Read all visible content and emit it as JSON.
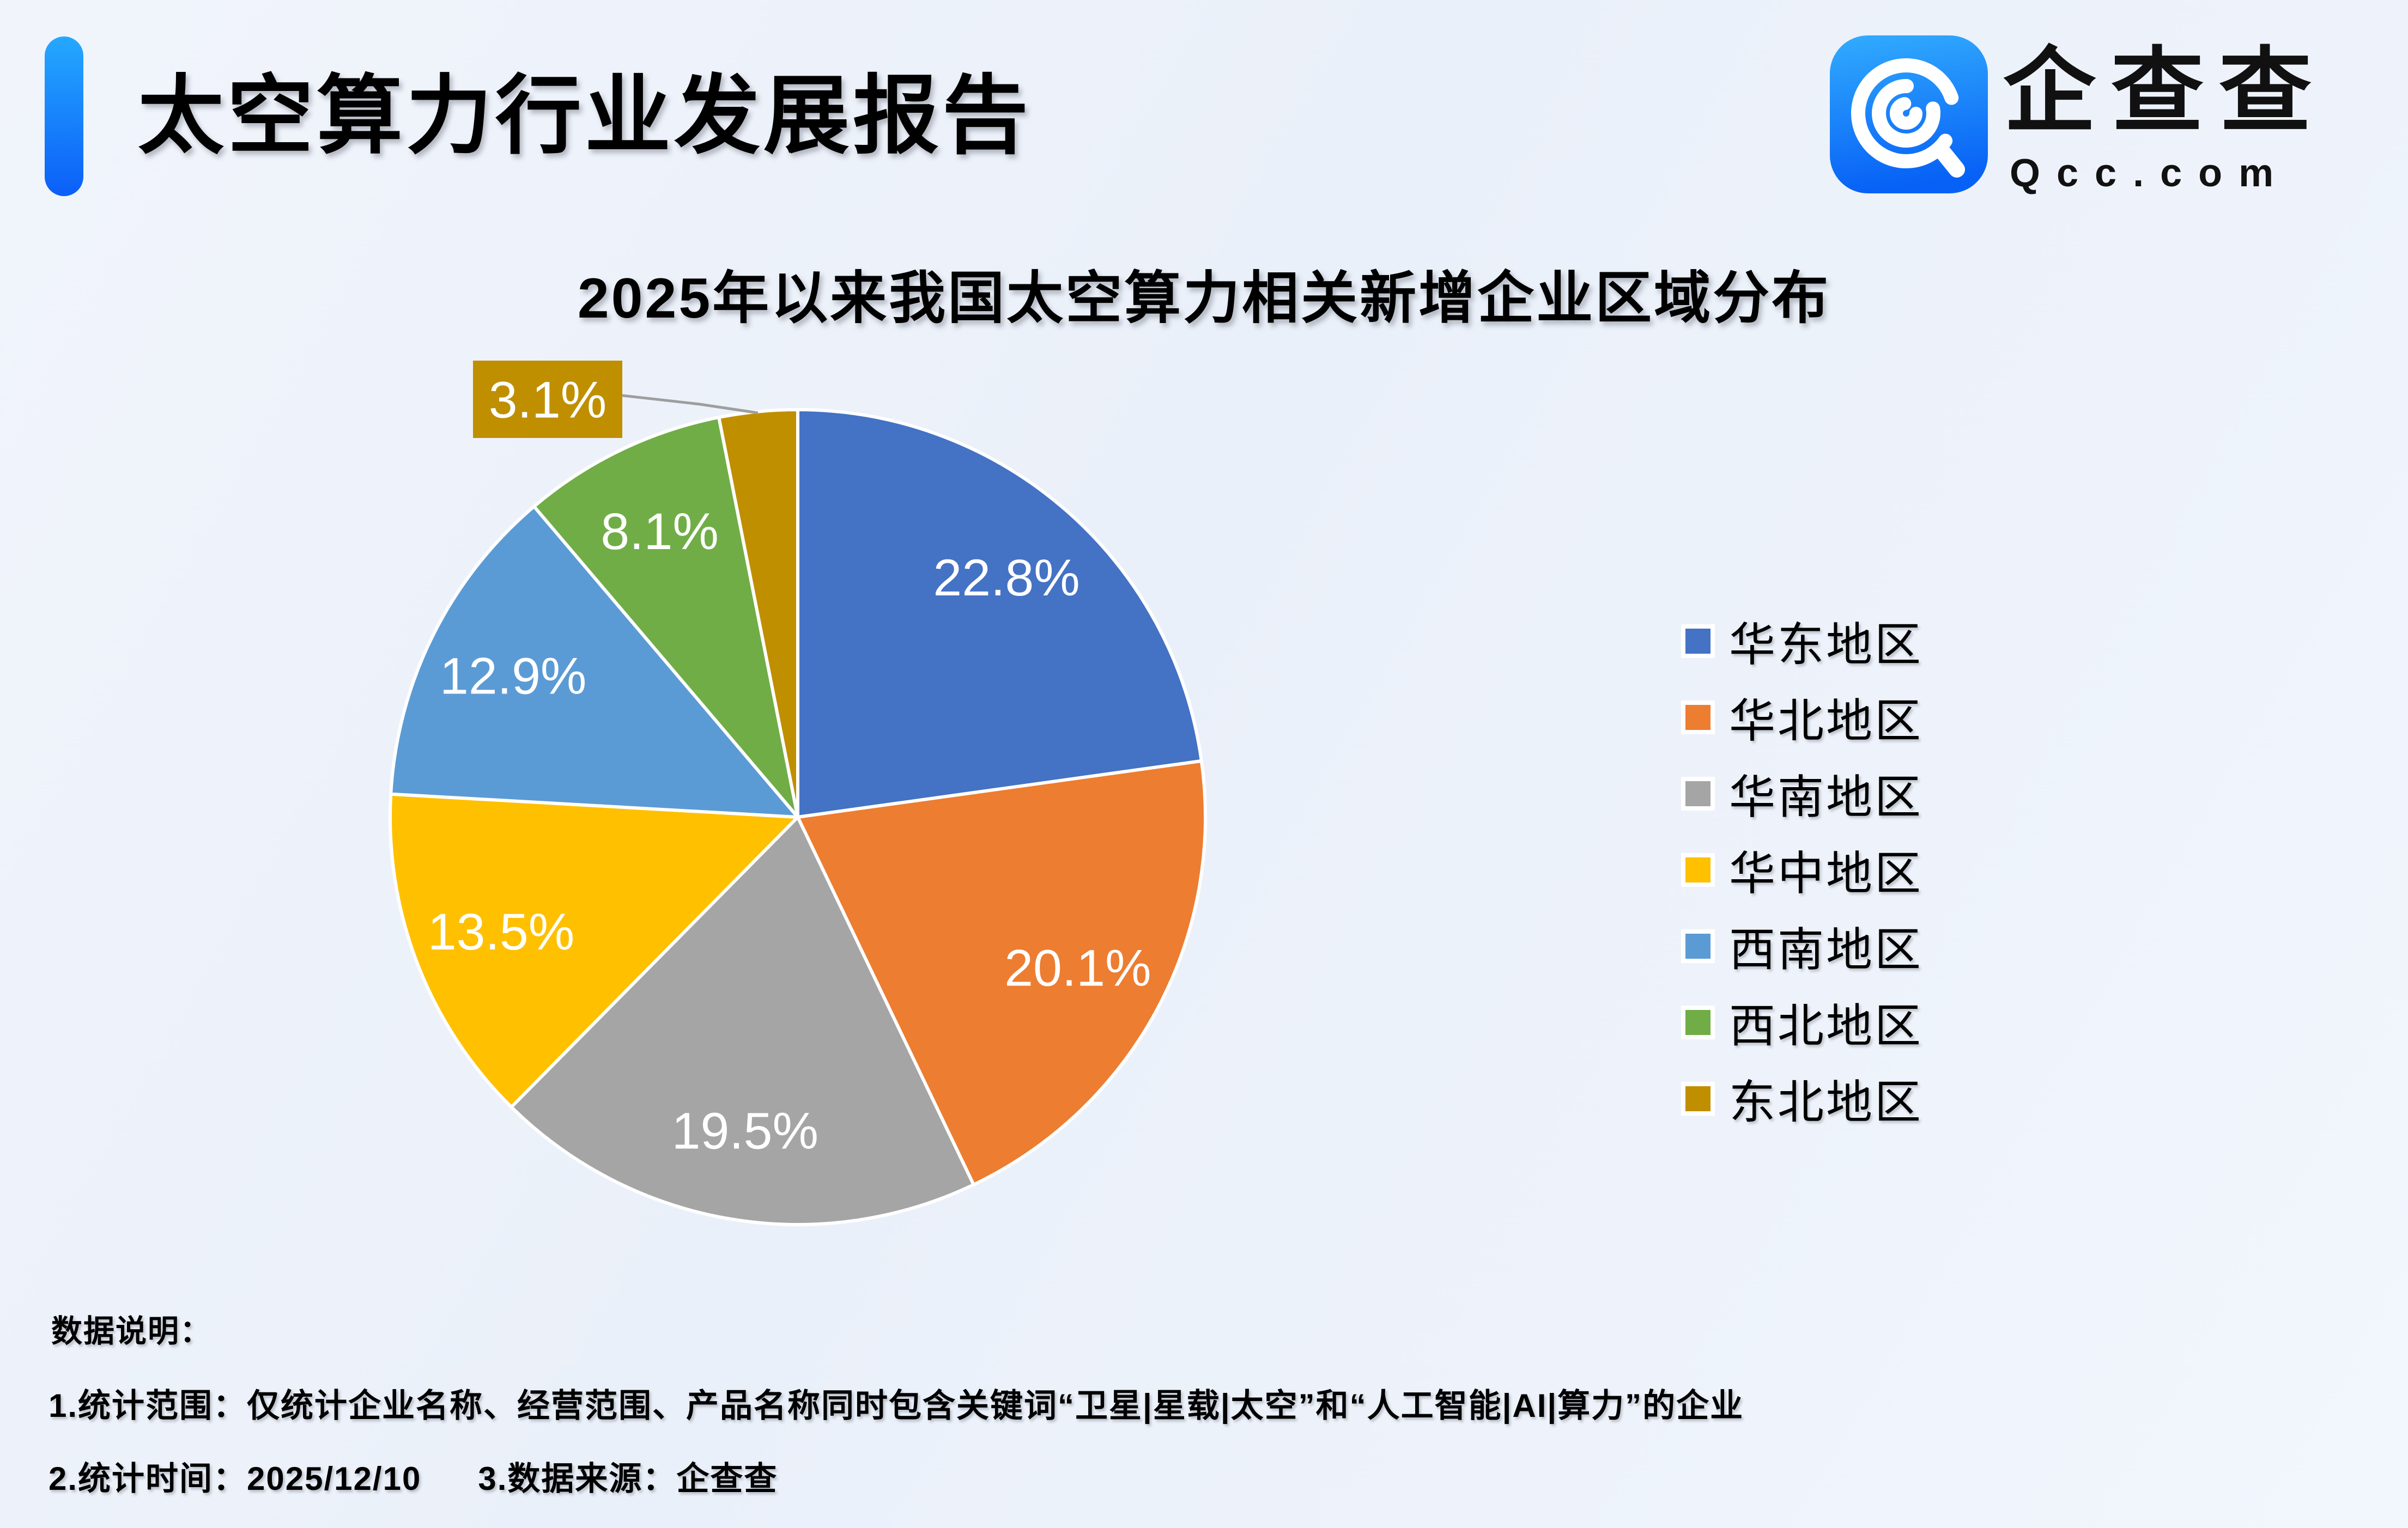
{
  "page": {
    "report_title": "太空算力行业发展报告",
    "logo": {
      "brand_name": "企查查",
      "brand_domain": "Qcc.com"
    },
    "accent_color": "#0B5FF8"
  },
  "chart_data": {
    "type": "pie",
    "title": "2025年以来我国太空算力相关新增企业区域分布",
    "categories": [
      "华东地区",
      "华北地区",
      "华南地区",
      "华中地区",
      "西南地区",
      "西北地区",
      "东北地区"
    ],
    "values": [
      22.8,
      20.1,
      19.5,
      13.5,
      12.9,
      8.1,
      3.1
    ],
    "labels": [
      "22.8%",
      "20.1%",
      "19.5%",
      "13.5%",
      "12.9%",
      "8.1%",
      "3.1%"
    ],
    "unit": "%",
    "colors": [
      "#4472C4",
      "#ED7D31",
      "#A5A5A5",
      "#FFC000",
      "#5B9BD5",
      "#70AD47",
      "#BF8F00"
    ],
    "legend_position": "right",
    "slice_border_color": "#FFFFFF",
    "callout": {
      "index": 6,
      "label": "3.1%",
      "leader_color": "#9E9E9E"
    }
  },
  "footnotes": {
    "heading": "数据说明：",
    "line1": "1.统计范围：仅统计企业名称、经营范围、产品名称同时包含关键词“卫星|星载|太空”和“人工智能|AI|算力”的企业",
    "line2_part1": "2.统计时间：2025/12/10",
    "line2_part2": "3.数据来源：企查查"
  }
}
